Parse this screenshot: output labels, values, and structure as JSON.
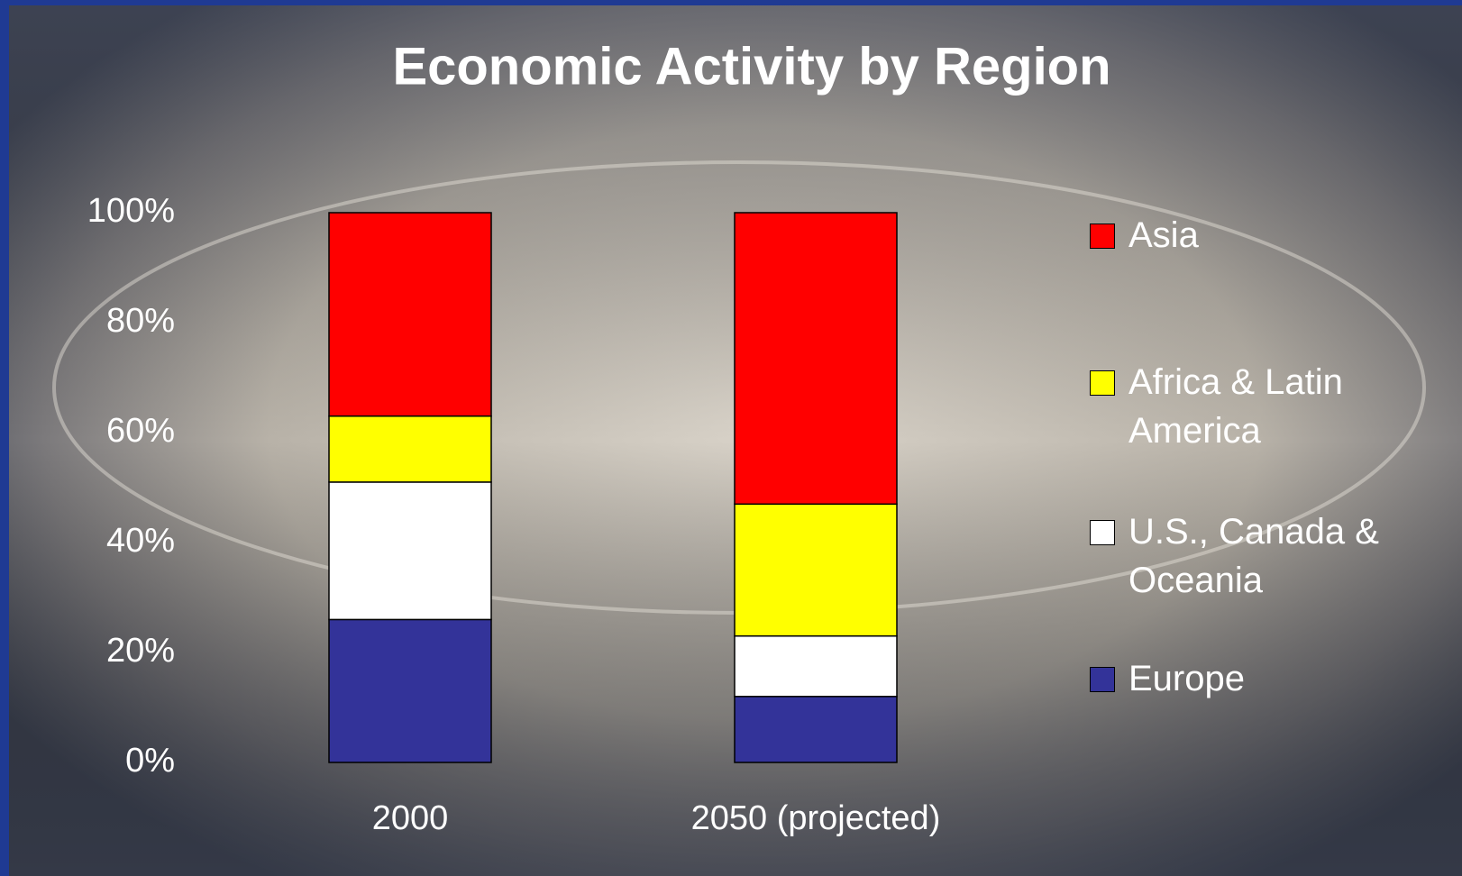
{
  "chart_data": {
    "type": "stacked_bar",
    "title": "Economic Activity by Region",
    "categories": [
      "2000",
      "2050 (projected)"
    ],
    "series": [
      {
        "name": "Europe",
        "color": "#333399",
        "values": [
          26,
          12
        ]
      },
      {
        "name": "U.S., Canada & Oceania",
        "color": "#ffffff",
        "values": [
          25,
          11
        ]
      },
      {
        "name": "Africa & Latin America",
        "color": "#ffff00",
        "values": [
          12,
          24
        ]
      },
      {
        "name": "Asia",
        "color": "#ff0000",
        "values": [
          37,
          53
        ]
      }
    ],
    "ylim": [
      0,
      100
    ],
    "yticks": [
      {
        "value": 0,
        "label": "0%"
      },
      {
        "value": 20,
        "label": "20%"
      },
      {
        "value": 40,
        "label": "40%"
      },
      {
        "value": 60,
        "label": "60%"
      },
      {
        "value": 80,
        "label": "80%"
      },
      {
        "value": 100,
        "label": "100%"
      }
    ],
    "legend": "right"
  }
}
